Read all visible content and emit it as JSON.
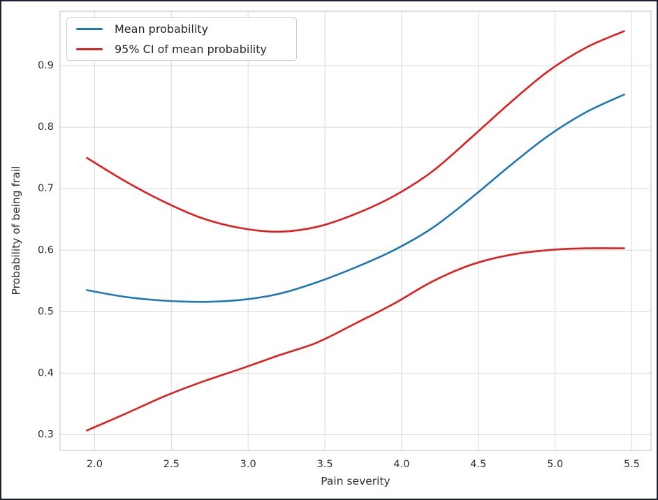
{
  "chart_data": {
    "type": "line",
    "title": "",
    "xlabel": "Pain severity",
    "ylabel": "Probability of being frail",
    "x_tick_labels": [
      "2.0",
      "2.5",
      "3.0",
      "3.5",
      "4.0",
      "4.5",
      "5.0",
      "5.5"
    ],
    "y_tick_labels": [
      "0.3",
      "0.4",
      "0.5",
      "0.6",
      "0.7",
      "0.8",
      "0.9"
    ],
    "xlim": [
      1.775,
      5.625
    ],
    "ylim": [
      0.2745,
      0.9885
    ],
    "grid": true,
    "legend_position": "upper left",
    "x": [
      1.95,
      2.2,
      2.45,
      2.7,
      2.95,
      3.2,
      3.45,
      3.7,
      3.95,
      4.2,
      4.45,
      4.7,
      4.95,
      5.2,
      5.45
    ],
    "series": [
      {
        "name": "Mean probability",
        "color": "#1f77b4",
        "values": [
          0.535,
          0.524,
          0.518,
          0.516,
          0.519,
          0.529,
          0.548,
          0.572,
          0.6,
          0.636,
          0.684,
          0.736,
          0.785,
          0.824,
          0.853
        ]
      },
      {
        "name": "95% CI upper bound",
        "color": "#e01e1e",
        "values": [
          0.75,
          0.712,
          0.679,
          0.652,
          0.636,
          0.63,
          0.638,
          0.659,
          0.688,
          0.728,
          0.782,
          0.838,
          0.89,
          0.929,
          0.956
        ]
      },
      {
        "name": "95% CI lower bound",
        "color": "#e01e1e",
        "values": [
          0.307,
          0.334,
          0.362,
          0.386,
          0.407,
          0.429,
          0.45,
          0.481,
          0.513,
          0.549,
          0.576,
          0.592,
          0.6,
          0.603,
          0.603
        ]
      }
    ],
    "legend": {
      "items": [
        {
          "label": "Mean probability",
          "color": "#1f77b4"
        },
        {
          "label": "95% CI of mean probability",
          "color": "#e01e1e"
        }
      ]
    },
    "colors": {
      "grid": "#d9d9d9",
      "spine": "#cccccc",
      "tick_text": "#2e2e2e",
      "frame_border": "#1d2230",
      "background": "#ffffff"
    }
  }
}
